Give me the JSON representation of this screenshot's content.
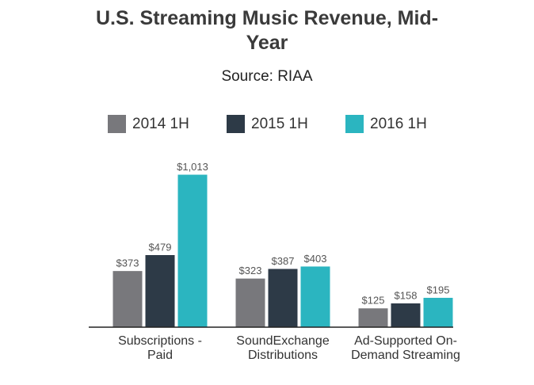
{
  "chart_data": {
    "type": "bar",
    "title": "U.S. Streaming Music Revenue, Mid-Year",
    "subtitle": "Source: RIAA",
    "categories": [
      "Subscriptions - Paid",
      "SoundExchange Distributions",
      "Ad-Supported On-Demand Streaming"
    ],
    "series": [
      {
        "name": "2014 1H",
        "color": "#78787c",
        "values": [
          373,
          323,
          125
        ],
        "value_labels": [
          "$373",
          "$323",
          "$125"
        ]
      },
      {
        "name": "2015 1H",
        "color": "#2d3a47",
        "values": [
          479,
          387,
          158
        ],
        "value_labels": [
          "$479",
          "$387",
          "$158"
        ]
      },
      {
        "name": "2016 1H",
        "color": "#2bb5c0",
        "values": [
          1013,
          403,
          195
        ],
        "value_labels": [
          "$1,013",
          "$403",
          "$195"
        ]
      }
    ],
    "legend": "top"
  }
}
